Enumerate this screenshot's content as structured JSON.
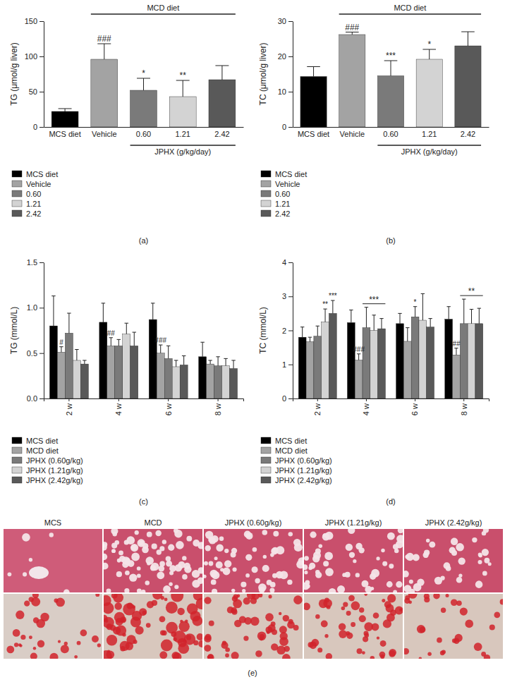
{
  "chart_data": [
    {
      "type": "bar",
      "panel_label": "(a)",
      "ylabel": "TG (μmol/g liver)",
      "categories": [
        "MCS diet",
        "Vehicle",
        "0.60",
        "1.21",
        "2.42"
      ],
      "values": [
        22,
        96,
        52,
        43,
        67
      ],
      "errors": [
        4,
        22,
        17,
        23,
        20
      ],
      "colors": [
        "#000000",
        "#a3a3a3",
        "#7a7a7a",
        "#d3d3d3",
        "#595959"
      ],
      "ylim": [
        0,
        150
      ],
      "yticks": [
        0,
        50,
        100,
        150
      ],
      "annotations": [
        {
          "text": "###",
          "category": 1
        },
        {
          "text": "*",
          "category": 2
        },
        {
          "text": "**",
          "category": 3
        }
      ],
      "top_bracket": {
        "label": "MCD diet",
        "from": 1,
        "to": 4
      },
      "bottom_bracket": {
        "label": "JPHX (g/kg/day)",
        "from": 2,
        "to": 4
      },
      "legend": "bottom"
    },
    {
      "type": "bar",
      "panel_label": "(b)",
      "ylabel": "TC (μmol/g liver)",
      "categories": [
        "MCS diet",
        "Vehicle",
        "0.60",
        "1.21",
        "2.42"
      ],
      "values": [
        14.3,
        26.2,
        14.5,
        19.2,
        23
      ],
      "errors": [
        2.8,
        0.7,
        4.3,
        2.8,
        4
      ],
      "colors": [
        "#000000",
        "#a3a3a3",
        "#7a7a7a",
        "#d3d3d3",
        "#595959"
      ],
      "ylim": [
        0,
        30
      ],
      "yticks": [
        0,
        10,
        20,
        30
      ],
      "annotations": [
        {
          "text": "###",
          "category": 1
        },
        {
          "text": "***",
          "category": 2
        },
        {
          "text": "*",
          "category": 3
        }
      ],
      "top_bracket": {
        "label": "MCD diet",
        "from": 1,
        "to": 4
      },
      "bottom_bracket": {
        "label": "JPHX (g/kg/day)",
        "from": 2,
        "to": 4
      },
      "legend": "bottom"
    },
    {
      "type": "bar",
      "panel_label": "(c)",
      "ylabel": "TG (mmol/L)",
      "categories": [
        "2 w",
        "4 w",
        "6 w",
        "8 w"
      ],
      "series": [
        {
          "name": "MCS diet",
          "color": "#000000",
          "values": [
            0.8,
            0.84,
            0.87,
            0.46
          ],
          "errors": [
            0.33,
            0.21,
            0.18,
            0.16
          ]
        },
        {
          "name": "MCD diet",
          "color": "#a3a3a3",
          "values": [
            0.51,
            0.58,
            0.5,
            0.38
          ],
          "errors": [
            0.06,
            0.09,
            0.09,
            0.04
          ]
        },
        {
          "name": "JPHX (0.60g/kg)",
          "color": "#7a7a7a",
          "values": [
            0.72,
            0.58,
            0.44,
            0.36
          ],
          "errors": [
            0.22,
            0.07,
            0.14,
            0.1
          ]
        },
        {
          "name": "JPHX (1.21g/kg)",
          "color": "#d3d3d3",
          "values": [
            0.42,
            0.71,
            0.35,
            0.36
          ],
          "errors": [
            0.12,
            0.12,
            0.07,
            0.08
          ]
        },
        {
          "name": "JPHX (2.42g/kg)",
          "color": "#595959",
          "values": [
            0.38,
            0.58,
            0.37,
            0.33
          ],
          "errors": [
            0.04,
            0.15,
            0.1,
            0.09
          ]
        }
      ],
      "ylim": [
        0,
        1.5
      ],
      "yticks": [
        {
          "value": 0,
          "label": "0.0"
        },
        0.5,
        {
          "value": 1,
          "label": "1.0"
        },
        1.5
      ],
      "annotations": [
        {
          "text": "#",
          "category": 0,
          "series": 1
        },
        {
          "text": "##",
          "category": 1,
          "series": 1
        },
        {
          "text": "###",
          "category": 2,
          "series": 1
        }
      ],
      "legend": "bottom"
    },
    {
      "type": "bar",
      "panel_label": "(d)",
      "ylabel": "TC (mmol/L)",
      "categories": [
        "2 w",
        "4 w",
        "6 w",
        "8 w"
      ],
      "series": [
        {
          "name": "MCS diet",
          "color": "#000000",
          "values": [
            1.8,
            2.23,
            2.2,
            2.33
          ],
          "errors": [
            0.3,
            0.37,
            0.3,
            0.37
          ]
        },
        {
          "name": "MCD diet",
          "color": "#a3a3a3",
          "values": [
            1.67,
            1.13,
            1.68,
            1.28
          ],
          "errors": [
            0.13,
            0.18,
            0.4,
            0.2
          ]
        },
        {
          "name": "JPHX (0.60g/kg)",
          "color": "#7a7a7a",
          "values": [
            1.83,
            2.08,
            2.4,
            2.2
          ],
          "errors": [
            0.3,
            0.6,
            0.3,
            0.72
          ]
        },
        {
          "name": "JPHX (1.21g/kg)",
          "color": "#d3d3d3",
          "values": [
            2.25,
            2.0,
            2.3,
            2.2
          ],
          "errors": [
            0.38,
            0.45,
            0.78,
            0.42
          ]
        },
        {
          "name": "JPHX (2.42g/kg)",
          "color": "#595959",
          "values": [
            2.5,
            2.05,
            2.1,
            2.2
          ],
          "errors": [
            0.38,
            0.3,
            0.25,
            0.45
          ]
        }
      ],
      "ylim": [
        0,
        4
      ],
      "yticks": [
        0,
        1,
        2,
        3,
        4
      ],
      "annotations": [
        {
          "text": "**",
          "category": 0,
          "series": 3
        },
        {
          "text": "***",
          "category": 0,
          "series": 4
        },
        {
          "text": "###",
          "category": 1,
          "series": 1
        },
        {
          "text": "***",
          "category": 1,
          "series": 2,
          "series_to": 4
        },
        {
          "text": "*",
          "category": 2,
          "series": 2
        },
        {
          "text": "##",
          "category": 3,
          "series": 1
        },
        {
          "text": "**",
          "category": 3,
          "series": 2,
          "series_to": 4
        }
      ],
      "legend": "bottom"
    }
  ],
  "images": {
    "panel_label": "(e)",
    "titles": [
      "MCS",
      "MCD",
      "JPHX (0.60g/kg)",
      "JPHX (1.21g/kg)",
      "JPHX (2.42g/kg)"
    ]
  }
}
